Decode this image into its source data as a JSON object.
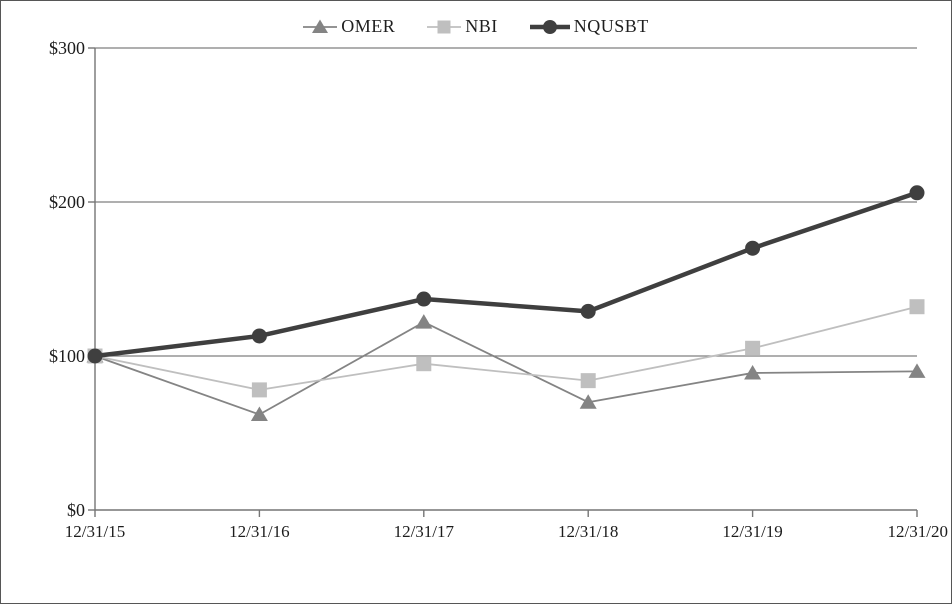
{
  "figure": {
    "background": "#ffffff",
    "border_color": "#565656"
  },
  "chart_data": {
    "type": "line",
    "x_labels": [
      "12/31/15",
      "12/31/16",
      "12/31/17",
      "12/31/18",
      "12/31/19",
      "12/31/20"
    ],
    "y_tick_labels": [
      "$0",
      "$100",
      "$200",
      "$300"
    ],
    "y_tick_values": [
      0,
      100,
      200,
      300
    ],
    "ylim": [
      0,
      300
    ],
    "grid": true,
    "legend_position": "top-center",
    "axis_color": "#757575",
    "grid_color": "#7f7f7f",
    "text_color": "#1c1c1c",
    "series": [
      {
        "name": "OMER",
        "marker": "triangle",
        "color": "#848484",
        "line_width": 1.8,
        "values": [
          100,
          62,
          122,
          70,
          89,
          90
        ]
      },
      {
        "name": "NBI",
        "marker": "square",
        "color": "#bfbfbf",
        "line_width": 1.8,
        "values": [
          100,
          78,
          95,
          84,
          105,
          132
        ]
      },
      {
        "name": "NQUSBT",
        "marker": "circle",
        "color": "#3f3f3f",
        "line_width": 4.5,
        "values": [
          100,
          113,
          137,
          129,
          170,
          206
        ]
      }
    ]
  }
}
